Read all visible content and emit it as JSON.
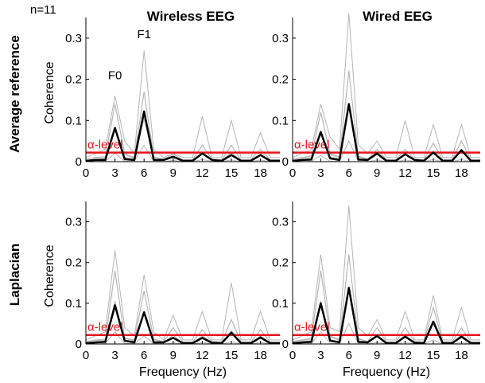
{
  "figure": {
    "n_label": "n=11",
    "columns": [
      "Wireless EEG",
      "Wired EEG"
    ],
    "rows": [
      "Average reference",
      "Laplacian"
    ],
    "alpha_label": "α-level",
    "peak_labels": {
      "F0": "F0",
      "F1": "F1"
    }
  },
  "colors": {
    "alpha_line": "#e8141c",
    "mean_line": "#000000",
    "subject_line": "#b5b5b5"
  },
  "chart_data": [
    {
      "type": "line",
      "panel": "wireless-average",
      "column": "Wireless EEG",
      "row": "Average reference",
      "xlabel": "",
      "ylabel": "Coherence",
      "xlim": [
        0,
        20
      ],
      "ylim": [
        0,
        0.35
      ],
      "xticks": [
        0,
        3,
        6,
        9,
        12,
        15,
        18
      ],
      "yticks": [
        0,
        0.1,
        0.2,
        0.3
      ],
      "xtick_labels": [
        "0",
        "3",
        "6",
        "9",
        "12",
        "15",
        "18"
      ],
      "ytick_labels": [
        "0",
        "0.1",
        "0.2",
        "0.3"
      ],
      "alpha_level": 0.022,
      "x": [
        0,
        1,
        2,
        3,
        4,
        5,
        6,
        7,
        8,
        9,
        10,
        11,
        12,
        13,
        14,
        15,
        16,
        17,
        18,
        19,
        20
      ],
      "mean": [
        0.002,
        0.004,
        0.004,
        0.082,
        0.006,
        0.004,
        0.122,
        0.004,
        0.004,
        0.012,
        0.002,
        0.002,
        0.02,
        0.004,
        0.002,
        0.016,
        0.002,
        0.002,
        0.016,
        0.002,
        0.002
      ],
      "subjects_max": [
        0.01,
        0.02,
        0.03,
        0.16,
        0.05,
        0.02,
        0.27,
        0.03,
        0.01,
        0.02,
        0.01,
        0.01,
        0.11,
        0.01,
        0.01,
        0.1,
        0.01,
        0.01,
        0.07,
        0.01,
        0.01
      ],
      "subjects_upper": [
        0.006,
        0.01,
        0.012,
        0.14,
        0.02,
        0.01,
        0.17,
        0.012,
        0.006,
        0.018,
        0.005,
        0.005,
        0.04,
        0.006,
        0.005,
        0.04,
        0.005,
        0.005,
        0.03,
        0.005,
        0.005
      ],
      "subjects_lower": [
        0.0,
        0.0,
        0.001,
        0.02,
        0.001,
        0.001,
        0.04,
        0.001,
        0.0,
        0.003,
        0.0,
        0.0,
        0.005,
        0.001,
        0.0,
        0.004,
        0.0,
        0.0,
        0.004,
        0.0,
        0.0
      ],
      "annotations": [
        {
          "label": "F0",
          "x": 3,
          "y": 0.2
        },
        {
          "label": "F1",
          "x": 6,
          "y": 0.3
        }
      ]
    },
    {
      "type": "line",
      "panel": "wired-average",
      "column": "Wired EEG",
      "row": "Average reference",
      "xlabel": "",
      "ylabel": "",
      "xlim": [
        0,
        20
      ],
      "ylim": [
        0,
        0.35
      ],
      "xticks": [
        0,
        3,
        6,
        9,
        12,
        15,
        18
      ],
      "yticks": [
        0,
        0.1,
        0.2,
        0.3
      ],
      "xtick_labels": [
        "0",
        "3",
        "6",
        "9",
        "12",
        "15",
        "18"
      ],
      "ytick_labels": [
        "0",
        "0.1",
        "0.2",
        "0.3"
      ],
      "alpha_level": 0.022,
      "x": [
        0,
        1,
        2,
        3,
        4,
        5,
        6,
        7,
        8,
        9,
        10,
        11,
        12,
        13,
        14,
        15,
        16,
        17,
        18,
        19,
        20
      ],
      "mean": [
        0.002,
        0.004,
        0.005,
        0.072,
        0.008,
        0.004,
        0.14,
        0.005,
        0.004,
        0.02,
        0.002,
        0.002,
        0.018,
        0.004,
        0.002,
        0.022,
        0.002,
        0.002,
        0.028,
        0.002,
        0.002
      ],
      "subjects_max": [
        0.01,
        0.02,
        0.03,
        0.14,
        0.06,
        0.03,
        0.36,
        0.04,
        0.02,
        0.05,
        0.01,
        0.01,
        0.1,
        0.01,
        0.01,
        0.09,
        0.01,
        0.01,
        0.09,
        0.01,
        0.01
      ],
      "subjects_upper": [
        0.006,
        0.01,
        0.014,
        0.12,
        0.02,
        0.012,
        0.22,
        0.014,
        0.006,
        0.03,
        0.005,
        0.005,
        0.03,
        0.006,
        0.005,
        0.045,
        0.005,
        0.005,
        0.05,
        0.005,
        0.005
      ],
      "subjects_lower": [
        0.0,
        0.0,
        0.001,
        0.015,
        0.001,
        0.001,
        0.05,
        0.001,
        0.0,
        0.004,
        0.0,
        0.0,
        0.004,
        0.001,
        0.0,
        0.005,
        0.0,
        0.0,
        0.005,
        0.0,
        0.0
      ],
      "annotations": []
    },
    {
      "type": "line",
      "panel": "wireless-laplacian",
      "column": "Wireless EEG",
      "row": "Laplacian",
      "xlabel": "Frequency (Hz)",
      "ylabel": "Coherence",
      "xlim": [
        0,
        20
      ],
      "ylim": [
        0,
        0.35
      ],
      "xticks": [
        0,
        3,
        6,
        9,
        12,
        15,
        18
      ],
      "yticks": [
        0,
        0.1,
        0.2,
        0.3
      ],
      "xtick_labels": [
        "0",
        "3",
        "6",
        "9",
        "12",
        "15",
        "18"
      ],
      "ytick_labels": [
        "0",
        "0.1",
        "0.2",
        "0.3"
      ],
      "alpha_level": 0.022,
      "x": [
        0,
        1,
        2,
        3,
        4,
        5,
        6,
        7,
        8,
        9,
        10,
        11,
        12,
        13,
        14,
        15,
        16,
        17,
        18,
        19,
        20
      ],
      "mean": [
        0.002,
        0.004,
        0.005,
        0.095,
        0.008,
        0.004,
        0.078,
        0.004,
        0.004,
        0.015,
        0.002,
        0.002,
        0.015,
        0.003,
        0.002,
        0.028,
        0.002,
        0.002,
        0.016,
        0.002,
        0.002
      ],
      "subjects_max": [
        0.01,
        0.02,
        0.03,
        0.23,
        0.04,
        0.02,
        0.17,
        0.03,
        0.01,
        0.07,
        0.01,
        0.01,
        0.08,
        0.01,
        0.01,
        0.15,
        0.01,
        0.01,
        0.08,
        0.01,
        0.01
      ],
      "subjects_upper": [
        0.006,
        0.01,
        0.012,
        0.18,
        0.015,
        0.01,
        0.13,
        0.012,
        0.006,
        0.04,
        0.005,
        0.005,
        0.035,
        0.006,
        0.005,
        0.06,
        0.005,
        0.005,
        0.035,
        0.005,
        0.005
      ],
      "subjects_lower": [
        0.0,
        0.0,
        0.001,
        0.03,
        0.001,
        0.001,
        0.02,
        0.001,
        0.0,
        0.003,
        0.0,
        0.0,
        0.004,
        0.001,
        0.0,
        0.005,
        0.0,
        0.0,
        0.004,
        0.0,
        0.0
      ],
      "annotations": []
    },
    {
      "type": "line",
      "panel": "wired-laplacian",
      "column": "Wired EEG",
      "row": "Laplacian",
      "xlabel": "Frequency (Hz)",
      "ylabel": "",
      "xlim": [
        0,
        20
      ],
      "ylim": [
        0,
        0.35
      ],
      "xticks": [
        0,
        3,
        6,
        9,
        12,
        15,
        18
      ],
      "yticks": [
        0,
        0.1,
        0.2,
        0.3
      ],
      "xtick_labels": [
        "0",
        "3",
        "6",
        "9",
        "12",
        "15",
        "18"
      ],
      "ytick_labels": [
        "0",
        "0.1",
        "0.2",
        "0.3"
      ],
      "alpha_level": 0.022,
      "x": [
        0,
        1,
        2,
        3,
        4,
        5,
        6,
        7,
        8,
        9,
        10,
        11,
        12,
        13,
        14,
        15,
        16,
        17,
        18,
        19,
        20
      ],
      "mean": [
        0.002,
        0.004,
        0.005,
        0.1,
        0.008,
        0.004,
        0.138,
        0.005,
        0.004,
        0.02,
        0.002,
        0.002,
        0.018,
        0.003,
        0.002,
        0.055,
        0.002,
        0.002,
        0.018,
        0.002,
        0.002
      ],
      "subjects_max": [
        0.01,
        0.02,
        0.03,
        0.22,
        0.04,
        0.03,
        0.34,
        0.04,
        0.02,
        0.06,
        0.01,
        0.01,
        0.08,
        0.01,
        0.01,
        0.12,
        0.01,
        0.01,
        0.09,
        0.01,
        0.01
      ],
      "subjects_upper": [
        0.006,
        0.01,
        0.014,
        0.18,
        0.02,
        0.012,
        0.22,
        0.014,
        0.006,
        0.04,
        0.005,
        0.005,
        0.04,
        0.006,
        0.005,
        0.09,
        0.005,
        0.005,
        0.04,
        0.005,
        0.005
      ],
      "subjects_lower": [
        0.0,
        0.0,
        0.001,
        0.03,
        0.001,
        0.001,
        0.05,
        0.001,
        0.0,
        0.004,
        0.0,
        0.0,
        0.004,
        0.001,
        0.0,
        0.01,
        0.0,
        0.0,
        0.004,
        0.0,
        0.0
      ],
      "annotations": []
    }
  ]
}
